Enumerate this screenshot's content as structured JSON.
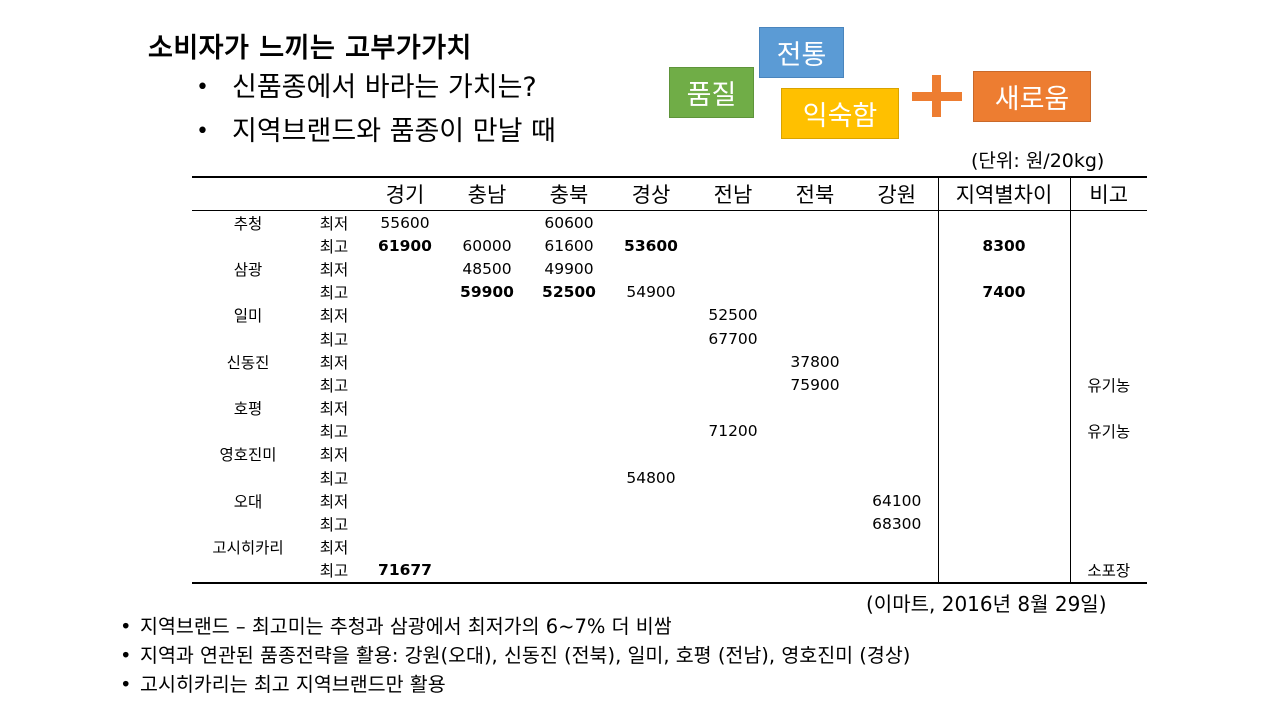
{
  "title": "소비자가 느끼는 고부가가치",
  "bullets_top": [
    "신품종에서 바라는 가치는?",
    "지역브랜드와 품종이 만날 때"
  ],
  "value_tags": {
    "quality": "품질",
    "tradition": "전통",
    "familiarity": "익숙함",
    "novelty": "새로움"
  },
  "unit_note": "(단위: 원/20kg)",
  "source_note": "(이마트, 2016년 8월 29일)",
  "table": {
    "headers": [
      "",
      "",
      "경기",
      "충남",
      "충북",
      "경상",
      "전남",
      "전북",
      "강원",
      "지역별차이",
      "비고"
    ],
    "rows": [
      {
        "variety": "추청",
        "kind": "최저",
        "c": [
          "55600",
          "",
          "60600",
          "",
          "",
          "",
          "",
          "",
          ""
        ]
      },
      {
        "variety": "",
        "kind": "최고",
        "c": [
          "61900",
          "60000",
          "61600",
          "53600",
          "",
          "",
          "",
          "8300",
          ""
        ]
      },
      {
        "variety": "삼광",
        "kind": "최저",
        "c": [
          "",
          "48500",
          "49900",
          "",
          "",
          "",
          "",
          "",
          ""
        ]
      },
      {
        "variety": "",
        "kind": "최고",
        "c": [
          "",
          "59900",
          "52500",
          "54900",
          "",
          "",
          "",
          "7400",
          ""
        ]
      },
      {
        "variety": "일미",
        "kind": "최저",
        "c": [
          "",
          "",
          "",
          "",
          "52500",
          "",
          "",
          "",
          ""
        ]
      },
      {
        "variety": "",
        "kind": "최고",
        "c": [
          "",
          "",
          "",
          "",
          "67700",
          "",
          "",
          "",
          ""
        ]
      },
      {
        "variety": "신동진",
        "kind": "최저",
        "c": [
          "",
          "",
          "",
          "",
          "",
          "37800",
          "",
          "",
          ""
        ]
      },
      {
        "variety": "",
        "kind": "최고",
        "c": [
          "",
          "",
          "",
          "",
          "",
          "75900",
          "",
          "",
          "유기농"
        ]
      },
      {
        "variety": "호평",
        "kind": "최저",
        "c": [
          "",
          "",
          "",
          "",
          "",
          "",
          "",
          "",
          ""
        ]
      },
      {
        "variety": "",
        "kind": "최고",
        "c": [
          "",
          "",
          "",
          "",
          "71200",
          "",
          "",
          "",
          "유기농"
        ]
      },
      {
        "variety": "영호진미",
        "kind": "최저",
        "c": [
          "",
          "",
          "",
          "",
          "",
          "",
          "",
          "",
          ""
        ]
      },
      {
        "variety": "",
        "kind": "최고",
        "c": [
          "",
          "",
          "",
          "54800",
          "",
          "",
          "",
          "",
          ""
        ]
      },
      {
        "variety": "오대",
        "kind": "최저",
        "c": [
          "",
          "",
          "",
          "",
          "",
          "",
          "64100",
          "",
          ""
        ]
      },
      {
        "variety": "",
        "kind": "최고",
        "c": [
          "",
          "",
          "",
          "",
          "",
          "",
          "68300",
          "",
          ""
        ]
      },
      {
        "variety": "고시히카리",
        "kind": "최저",
        "c": [
          "",
          "",
          "",
          "",
          "",
          "",
          "",
          "",
          ""
        ]
      },
      {
        "variety": "",
        "kind": "최고",
        "c": [
          "71677",
          "",
          "",
          "",
          "",
          "",
          "",
          "",
          "소포장"
        ]
      }
    ],
    "bold_cells": [
      [
        1,
        0
      ],
      [
        1,
        3
      ],
      [
        1,
        7
      ],
      [
        3,
        1
      ],
      [
        3,
        2
      ],
      [
        3,
        7
      ],
      [
        15,
        0
      ]
    ]
  },
  "bullets_bottom": [
    "지역브랜드 – 최고미는 추청과 삼광에서 최저가의 6~7% 더 비쌈",
    "지역과 연관된 품종전략을 활용: 강원(오대), 신동진 (전북), 일미, 호평 (전남), 영호진미 (경상)",
    "고시히카리는 최고 지역브랜드만 활용"
  ]
}
